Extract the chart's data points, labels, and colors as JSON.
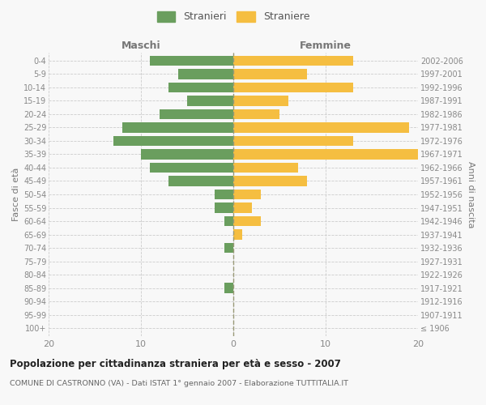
{
  "age_groups": [
    "100+",
    "95-99",
    "90-94",
    "85-89",
    "80-84",
    "75-79",
    "70-74",
    "65-69",
    "60-64",
    "55-59",
    "50-54",
    "45-49",
    "40-44",
    "35-39",
    "30-34",
    "25-29",
    "20-24",
    "15-19",
    "10-14",
    "5-9",
    "0-4"
  ],
  "birth_years": [
    "≤ 1906",
    "1907-1911",
    "1912-1916",
    "1917-1921",
    "1922-1926",
    "1927-1931",
    "1932-1936",
    "1937-1941",
    "1942-1946",
    "1947-1951",
    "1952-1956",
    "1957-1961",
    "1962-1966",
    "1967-1971",
    "1972-1976",
    "1977-1981",
    "1982-1986",
    "1987-1991",
    "1992-1996",
    "1997-2001",
    "2002-2006"
  ],
  "males": [
    0,
    0,
    0,
    1,
    0,
    0,
    1,
    0,
    1,
    2,
    2,
    7,
    9,
    10,
    13,
    12,
    8,
    5,
    7,
    6,
    9
  ],
  "females": [
    0,
    0,
    0,
    0,
    0,
    0,
    0,
    1,
    3,
    2,
    3,
    8,
    7,
    20,
    13,
    19,
    5,
    6,
    13,
    8,
    13
  ],
  "male_color": "#6a9e5e",
  "female_color": "#f5be41",
  "background_color": "#f8f8f8",
  "grid_color": "#cccccc",
  "title": "Popolazione per cittadinanza straniera per età e sesso - 2007",
  "subtitle": "COMUNE DI CASTRONNO (VA) - Dati ISTAT 1° gennaio 2007 - Elaborazione TUTTITALIA.IT",
  "xlabel_left": "Maschi",
  "xlabel_right": "Femmine",
  "ylabel_left": "Fasce di età",
  "ylabel_right": "Anni di nascita",
  "legend_male": "Stranieri",
  "legend_female": "Straniere",
  "xlim": 20,
  "bar_height": 0.75
}
